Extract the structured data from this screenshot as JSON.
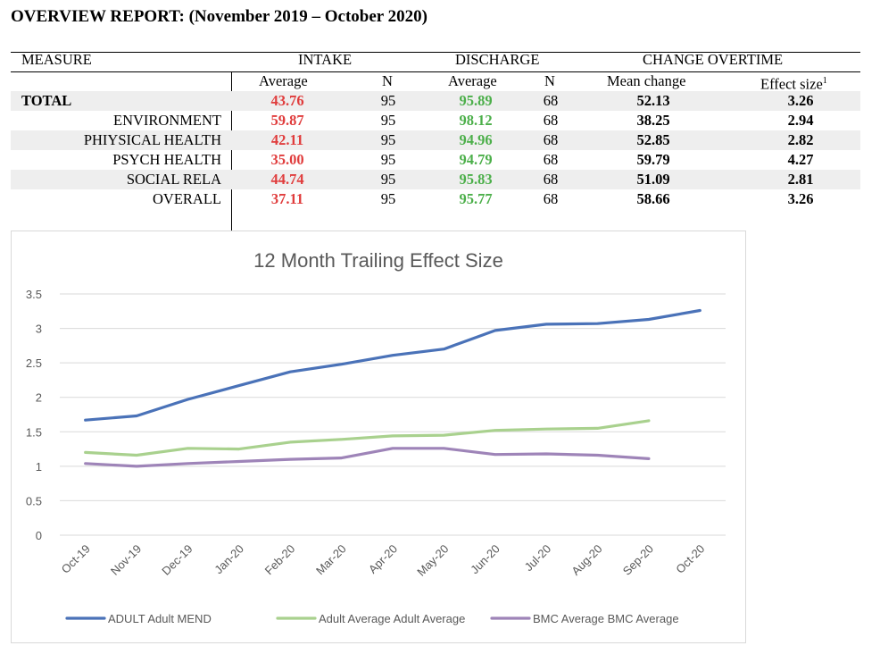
{
  "report": {
    "title": "OVERVIEW REPORT: (November 2019 – October 2020)"
  },
  "table": {
    "groups": {
      "measure": "MEASURE",
      "intake": "INTAKE",
      "discharge": "DISCHARGE",
      "change": "CHANGE OVERTIME"
    },
    "subheaders": {
      "intake_avg": "Average",
      "intake_n": "N",
      "discharge_avg": "Average",
      "discharge_n": "N",
      "mean_change": "Mean change",
      "effect_size": "Effect size",
      "effect_size_sup": "1"
    },
    "rows": [
      {
        "measure": "TOTAL",
        "intake_avg": "43.76",
        "intake_n": "95",
        "discharge_avg": "95.89",
        "discharge_n": "68",
        "mean_change": "52.13",
        "effect_size": "3.26"
      },
      {
        "measure": "ENVIRONMENT",
        "intake_avg": "59.87",
        "intake_n": "95",
        "discharge_avg": "98.12",
        "discharge_n": "68",
        "mean_change": "38.25",
        "effect_size": "2.94"
      },
      {
        "measure": "PHIYSICAL HEALTH",
        "intake_avg": "42.11",
        "intake_n": "95",
        "discharge_avg": "94.96",
        "discharge_n": "68",
        "mean_change": "52.85",
        "effect_size": "2.82"
      },
      {
        "measure": "PSYCH HEALTH",
        "intake_avg": "35.00",
        "intake_n": "95",
        "discharge_avg": "94.79",
        "discharge_n": "68",
        "mean_change": "59.79",
        "effect_size": "4.27"
      },
      {
        "measure": "SOCIAL RELA",
        "intake_avg": "44.74",
        "intake_n": "95",
        "discharge_avg": "95.83",
        "discharge_n": "68",
        "mean_change": "51.09",
        "effect_size": "2.81"
      },
      {
        "measure": "OVERALL",
        "intake_avg": "37.11",
        "intake_n": "95",
        "discharge_avg": "95.77",
        "discharge_n": "68",
        "mean_change": "58.66",
        "effect_size": "3.26"
      }
    ],
    "colors": {
      "intake": "#e03c3c",
      "discharge": "#4caf4a"
    }
  },
  "chart_data": {
    "type": "line",
    "title": "12 Month Trailing Effect Size",
    "xlabel": "",
    "ylabel": "",
    "x": [
      "Oct-19",
      "Nov-19",
      "Dec-19",
      "Jan-20",
      "Feb-20",
      "Mar-20",
      "Apr-20",
      "May-20",
      "Jun-20",
      "Jul-20",
      "Aug-20",
      "Sep-20",
      "Oct-20"
    ],
    "ylim": [
      0,
      3.5
    ],
    "yticks": [
      "0",
      "0.5",
      "1",
      "1.5",
      "2",
      "2.5",
      "3",
      "3.5"
    ],
    "grid": true,
    "legend": "bottom",
    "series": [
      {
        "name": "ADULT Adult MEND",
        "color": "#4a72b8",
        "values": [
          1.67,
          1.73,
          1.97,
          2.17,
          2.37,
          2.48,
          2.61,
          2.7,
          2.97,
          3.06,
          3.07,
          3.13,
          3.26
        ]
      },
      {
        "name": "Adult Average Adult Average",
        "color": "#a9d18e",
        "values": [
          1.2,
          1.16,
          1.26,
          1.25,
          1.35,
          1.39,
          1.44,
          1.45,
          1.52,
          1.54,
          1.55,
          1.66,
          null
        ]
      },
      {
        "name": "BMC Average BMC Average",
        "color": "#9e84b8",
        "values": [
          1.04,
          1.0,
          1.04,
          1.07,
          1.1,
          1.12,
          1.26,
          1.26,
          1.17,
          1.18,
          1.16,
          1.11,
          null
        ]
      }
    ]
  }
}
